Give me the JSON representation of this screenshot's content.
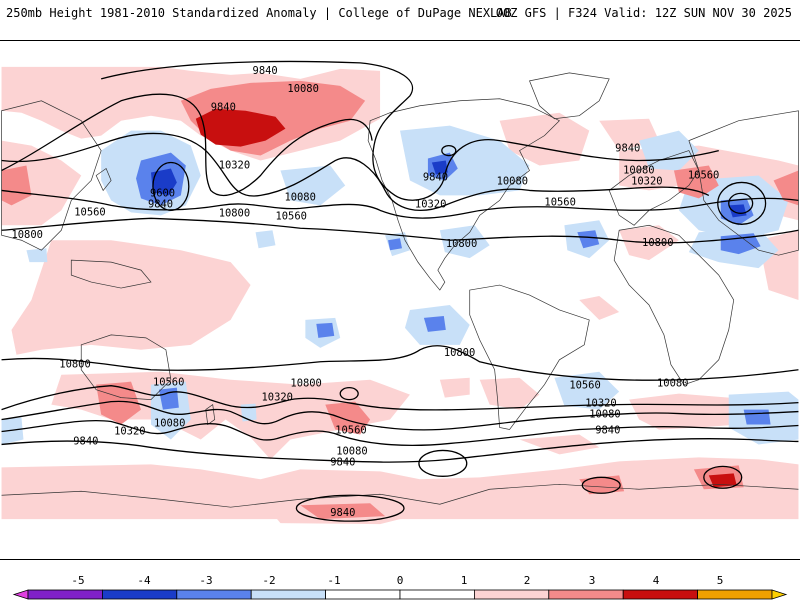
{
  "header": {
    "left": "250mb Height 1981-2010 Standardized Anomaly | College of DuPage NEXLAB",
    "right": "00Z GFS | F324 Valid: 12Z SUN NOV 30 2025"
  },
  "colors": {
    "land_line": "#333333",
    "contour": "#000000",
    "pos1": "#fcd3d3",
    "pos2": "#f48a8a",
    "pos3": "#c80f0f",
    "neg1": "#c8e0f8",
    "neg2": "#5a82ec",
    "neg3": "#1a3cc8"
  },
  "contour_labels": [
    "9840",
    "9600",
    "10080",
    "10320",
    "10560",
    "10800"
  ],
  "contour_label_instances": [
    "9840",
    "10080",
    "10320",
    "9600",
    "9840",
    "10560",
    "10800",
    "10080",
    "10800",
    "10560",
    "9840",
    "10320",
    "10080",
    "10800",
    "10560",
    "9840",
    "10080",
    "10320",
    "10560",
    "10800",
    "10800",
    "10800",
    "10560",
    "10320",
    "10080",
    "9840",
    "10800",
    "10320",
    "10560",
    "10080",
    "9840",
    "10080",
    "9840",
    "10560",
    "10320",
    "10080",
    "9840",
    "9840"
  ],
  "colorbar": {
    "ticks": [
      "-5",
      "-4",
      "-3",
      "-2",
      "-1",
      "0",
      "1",
      "2",
      "3",
      "4",
      "5"
    ],
    "colors": [
      "#e040e0",
      "#8020c8",
      "#1a3cc8",
      "#5a82ec",
      "#c8e0f8",
      "#ffffff",
      "#ffffff",
      "#fcd3d3",
      "#f48a8a",
      "#c80f0f",
      "#f0a000",
      "#ffd000"
    ]
  }
}
